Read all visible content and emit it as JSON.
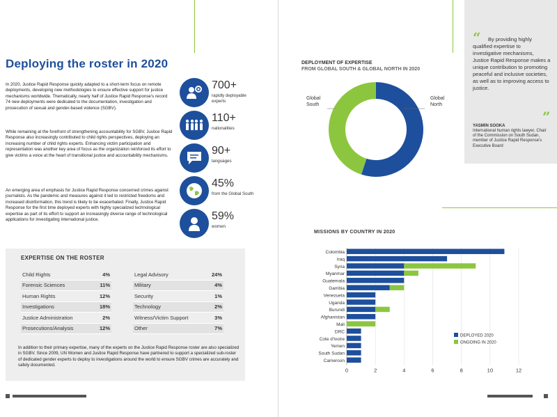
{
  "left": {
    "headline": "Deploying the roster in 2020",
    "paragraphs": [
      "In 2020, Justice Rapid Response quickly adapted to a short-term focus on remote deployments, developing new methodologies to ensure effective support for justice mechanisms worldwide. Thematically, nearly half of Justice Rapid Response's record 74 new deployments were dedicated to the documentation, investigation and prosecution of sexual and gender-based violence (SGBV).",
      "While remaining at the forefront of strengthening accountability for SGBV, Justice Rapid Response also increasingly contributed to child rights perspectives, deploying an increasing number of child rights experts. Enhancing victim participation and representation was another key area of focus as the organization reinforced its effort to give victims a voice at the heart of transitional justice and accountability mechanisms.",
      "An emerging area of emphasis for Justice Rapid Response concerned crimes against journalists. As the pandemic and measures against it led to restricted freedoms and increased disinformation, this trend is likely to be exacerbated. Finally, Justice Rapid Response for the first time deployed experts with highly specialized technological expertise as part of its effort to support an increasingly diverse range of technological applications for investigating international justice."
    ],
    "stats": [
      {
        "value": "700+",
        "label": "rapidly deployable experts",
        "icon": "people-gear-icon"
      },
      {
        "value": "110+",
        "label": "nationalities",
        "icon": "group-icon"
      },
      {
        "value": "90+",
        "label": "languages",
        "icon": "speech-bubble-icon"
      },
      {
        "value": "45%",
        "label": "from the Global South",
        "icon": "globe-icon"
      },
      {
        "value": "59%",
        "label": "women",
        "icon": "woman-icon"
      }
    ],
    "expertise": {
      "title": "EXPERTISE ON THE ROSTER",
      "left_rows": [
        {
          "name": "Child Rights",
          "pct": "4%"
        },
        {
          "name": "Forensic Sciences",
          "pct": "11%"
        },
        {
          "name": "Human Rights",
          "pct": "12%"
        },
        {
          "name": "Investigations",
          "pct": "18%"
        },
        {
          "name": "Justice Administration",
          "pct": "2%"
        },
        {
          "name": "Prosecutions/Analysis",
          "pct": "12%"
        }
      ],
      "right_rows": [
        {
          "name": "Legal Advisory",
          "pct": "24%"
        },
        {
          "name": "Military",
          "pct": "4%"
        },
        {
          "name": "Security",
          "pct": "1%"
        },
        {
          "name": "Technology",
          "pct": "2%"
        },
        {
          "name": "Witness/Victim Support",
          "pct": "3%"
        },
        {
          "name": "Other",
          "pct": "7%"
        }
      ],
      "note": "In addition to their primary expertise, many of the experts on the Justice Rapid Response roster are also specialized in SGBV. Since 2009, UN Women and Justice Rapid Response have partnered to support a specialized sub-roster of dedicated gender experts to deploy to investigations around the world to ensure SGBV crimes are accurately and safely documented."
    }
  },
  "right": {
    "quote": {
      "text": "By providing highly qualified expertise to investigative mechanisms, Justice Rapid Response makes a unique contribution to promoting peaceful and inclusive societies, as well as to improving access to justice.",
      "name": "YASMIN SOOKA",
      "role": "International human rights lawyer, Chair of the Commission on South Sudan, member of Justice Rapid Response's Executive Board"
    },
    "donut_title_1": "DEPLOYMENT OF EXPERTISE",
    "donut_title_2": "FROM GLOBAL SOUTH & GLOBAL NORTH IN 2020",
    "bar_title": "MISSIONS BY COUNTRY IN 2020",
    "colors": {
      "blue": "#1d4f9c",
      "green": "#8cc63f"
    }
  },
  "chart_data": [
    {
      "type": "pie",
      "title": "DEPLOYMENT OF EXPERTISE FROM GLOBAL SOUTH & GLOBAL NORTH IN 2020",
      "categories": [
        "Global North",
        "Global South"
      ],
      "values": [
        55,
        45
      ],
      "colors": [
        "#1d4f9c",
        "#8cc63f"
      ]
    },
    {
      "type": "bar",
      "orientation": "horizontal",
      "stacked": true,
      "title": "MISSIONS BY COUNTRY IN 2020",
      "categories": [
        "Colombia",
        "Iraq",
        "Syria",
        "Myanmar",
        "Guatemala",
        "Gambia",
        "Venezuela",
        "Uganda",
        "Burundi",
        "Afghanistan",
        "Mali",
        "DRC",
        "Cote d'Ivoire",
        "Yemen",
        "South Sudan",
        "Cameroon"
      ],
      "series": [
        {
          "name": "DEPLOYED 2020",
          "color": "#1d4f9c",
          "values": [
            11,
            7,
            4,
            4,
            4,
            3,
            2,
            2,
            2,
            2,
            0,
            1,
            1,
            1,
            1,
            1
          ]
        },
        {
          "name": "ONGOING IN 2020",
          "color": "#8cc63f",
          "values": [
            0,
            0,
            5,
            1,
            0,
            1,
            0,
            0,
            1,
            0,
            2,
            0,
            0,
            0,
            0,
            0
          ]
        }
      ],
      "xlim": [
        0,
        12
      ],
      "xticks": [
        "0",
        "2",
        "4",
        "6",
        "8",
        "10",
        "12"
      ],
      "legend": "bottom-right"
    }
  ]
}
